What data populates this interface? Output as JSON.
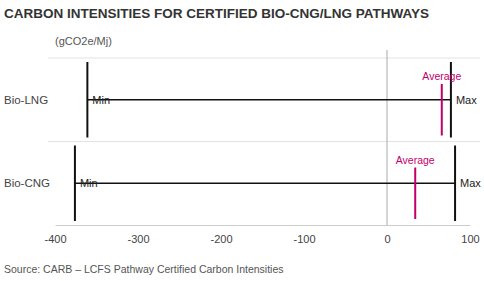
{
  "chart_data": {
    "type": "range",
    "orientation": "horizontal",
    "title": "CARBON INTENSITIES FOR CERTIFIED BIO-CNG/LNG PATHWAYS",
    "subtitle": "(gCO2e/Mj)",
    "source": "Source: CARB – LCFS Pathway Certified Carbon Intensities",
    "categories": [
      "Bio-LNG",
      "Bio-CNG"
    ],
    "series": [
      {
        "name": "Min",
        "color": "#111111",
        "values": [
          -361,
          -376
        ]
      },
      {
        "name": "Max",
        "color": "#111111",
        "values": [
          77,
          82
        ]
      },
      {
        "name": "Average",
        "color": "#c2006b",
        "values": [
          66,
          34
        ]
      }
    ],
    "xlim": [
      -400,
      100
    ],
    "xticks": [
      -400,
      -300,
      -200,
      -100,
      0,
      100
    ],
    "grid": false
  }
}
